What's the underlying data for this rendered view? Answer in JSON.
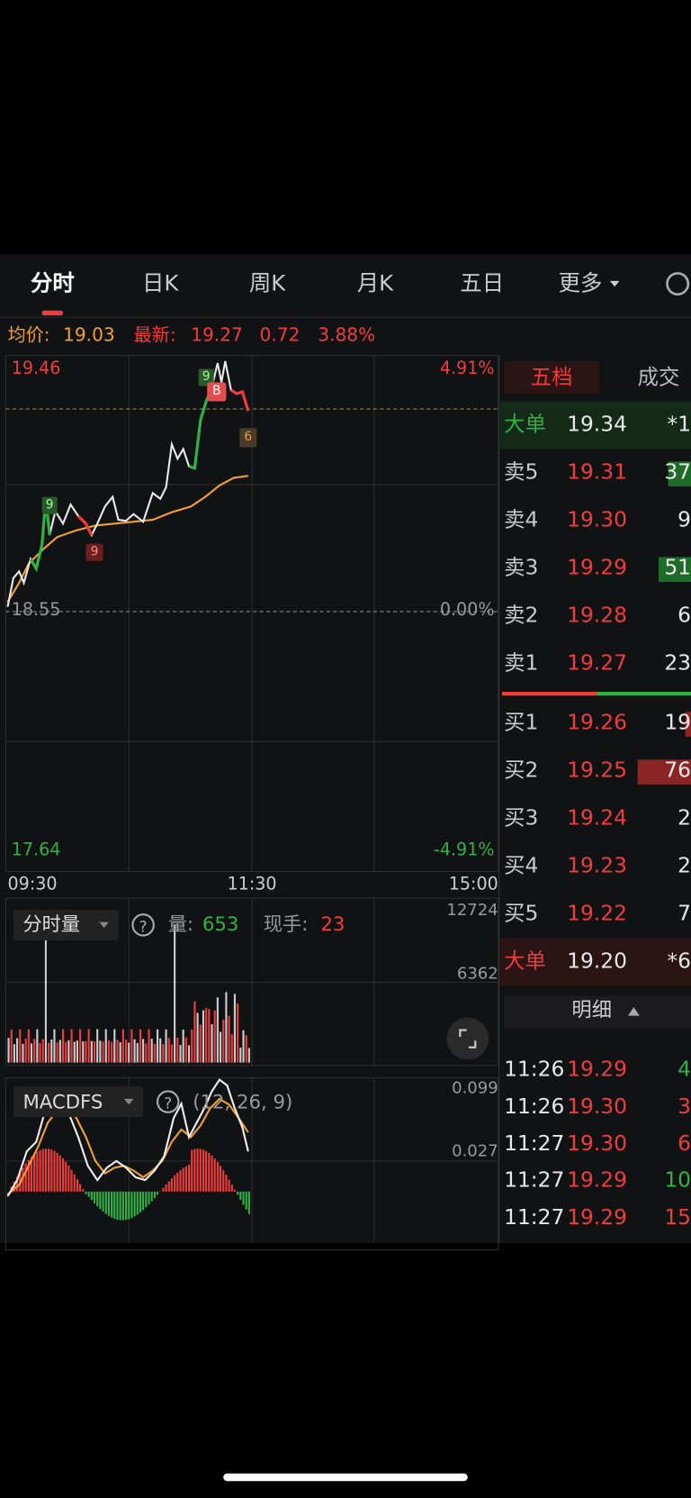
{
  "tabs": [
    "分时",
    "日K",
    "周K",
    "月K",
    "五日",
    "更多"
  ],
  "quote": {
    "avg_label": "均价:",
    "avg": "19.03",
    "last_label": "最新:",
    "last": "19.27",
    "change": "0.72",
    "pct": "3.88%"
  },
  "price_chart": {
    "high": "19.46",
    "high_pct": "4.91%",
    "base": "18.55",
    "base_pct": "0.00%",
    "low": "17.64",
    "low_pct": "-4.91%",
    "times": [
      "09:30",
      "11:30",
      "15:00"
    ],
    "markers": [
      "9",
      "B",
      "6",
      "9",
      "9"
    ]
  },
  "volume": {
    "selector": "分时量",
    "vol_label": "量:",
    "vol": "653",
    "hand_label": "现手:",
    "hand": "23",
    "ticks": [
      "12724",
      "6362"
    ]
  },
  "macd": {
    "selector": "MACDFS",
    "params": "(12, 26, 9)",
    "ticks": [
      "0.099",
      "0.027"
    ]
  },
  "orderbook": {
    "tabs": [
      "五档",
      "成交"
    ],
    "big_sell": {
      "label": "大单",
      "price": "19.34",
      "qty": "*1"
    },
    "asks": [
      {
        "label": "卖5",
        "price": "19.31",
        "qty": "37"
      },
      {
        "label": "卖4",
        "price": "19.30",
        "qty": "9"
      },
      {
        "label": "卖3",
        "price": "19.29",
        "qty": "51"
      },
      {
        "label": "卖2",
        "price": "19.28",
        "qty": "6"
      },
      {
        "label": "卖1",
        "price": "19.27",
        "qty": "23"
      }
    ],
    "bids": [
      {
        "label": "买1",
        "price": "19.26",
        "qty": "19"
      },
      {
        "label": "买2",
        "price": "19.25",
        "qty": "76"
      },
      {
        "label": "买3",
        "price": "19.24",
        "qty": "2"
      },
      {
        "label": "买4",
        "price": "19.23",
        "qty": "2"
      },
      {
        "label": "买5",
        "price": "19.22",
        "qty": "7"
      }
    ],
    "big_buy": {
      "label": "大单",
      "price": "19.20",
      "qty": "*6"
    }
  },
  "detail": {
    "title": "明细",
    "rows": [
      [
        "11:26",
        "19.29",
        "4"
      ],
      [
        "11:26",
        "19.30",
        "3"
      ],
      [
        "11:27",
        "19.30",
        "6"
      ],
      [
        "11:27",
        "19.29",
        "10"
      ],
      [
        "11:27",
        "19.29",
        "15"
      ]
    ]
  }
}
